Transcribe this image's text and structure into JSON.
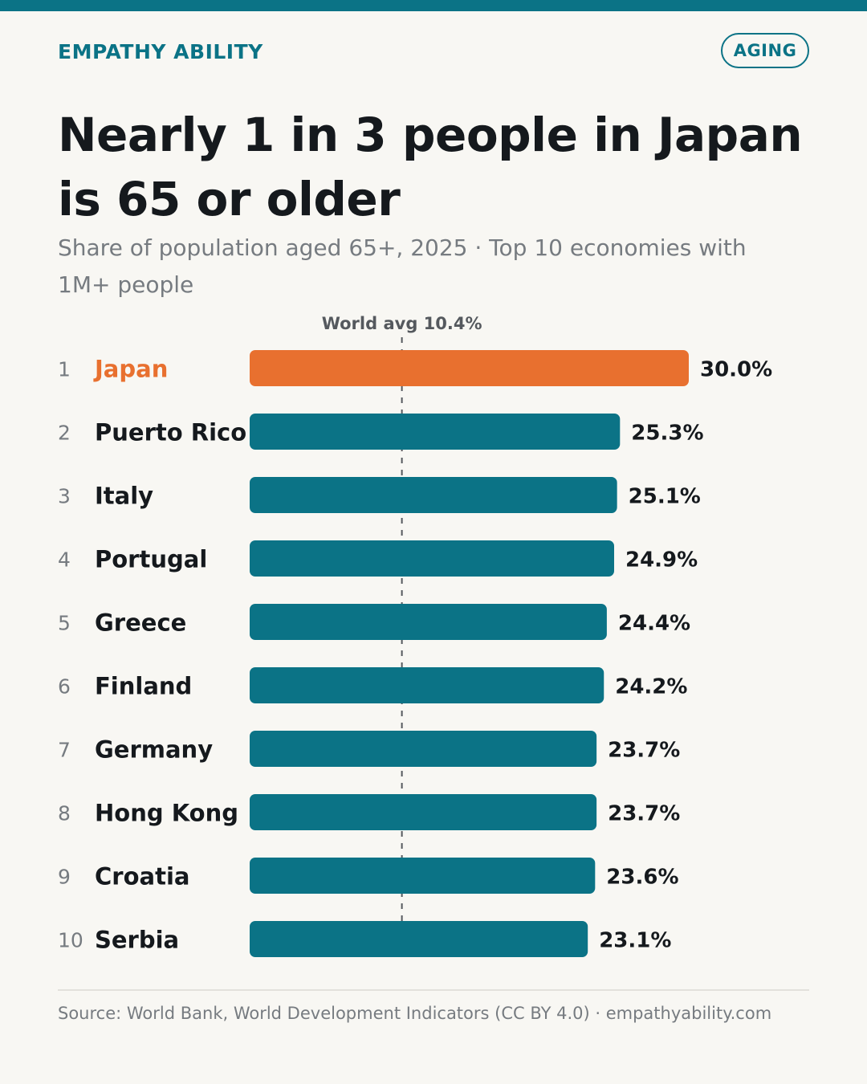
{
  "header": {
    "brand": "EMPATHY ABILITY",
    "tag": "AGING",
    "title": "Nearly 1 in 3 people in Japan is 65 or older",
    "subtitle": "Share of population aged 65+, 2025 · Top 10 economies with 1M+ people"
  },
  "footer": {
    "source": "Source: World Bank, World Development Indicators (CC BY 4.0) · empathyability.com"
  },
  "colors": {
    "accent": "#0b7386",
    "highlight": "#e8702f",
    "text": "#15191d",
    "muted": "#767b80",
    "background": "#f8f7f3"
  },
  "chart_data": {
    "type": "bar",
    "orientation": "horizontal",
    "categories": [
      "Japan",
      "Puerto Rico",
      "Italy",
      "Portugal",
      "Greece",
      "Finland",
      "Germany",
      "Hong Kong",
      "Croatia",
      "Serbia"
    ],
    "ranks": [
      "1",
      "2",
      "3",
      "4",
      "5",
      "6",
      "7",
      "8",
      "9",
      "10"
    ],
    "values": [
      30.0,
      25.3,
      25.1,
      24.9,
      24.4,
      24.2,
      23.7,
      23.7,
      23.6,
      23.1
    ],
    "value_labels": [
      "30.0%",
      "25.3%",
      "25.1%",
      "24.9%",
      "24.4%",
      "24.2%",
      "23.7%",
      "23.7%",
      "23.6%",
      "23.1%"
    ],
    "highlight_index": 0,
    "reference_line": {
      "value": 10.4,
      "label": "World avg 10.4%"
    },
    "xlim": [
      0,
      30
    ],
    "grid": false,
    "legend": "none"
  }
}
